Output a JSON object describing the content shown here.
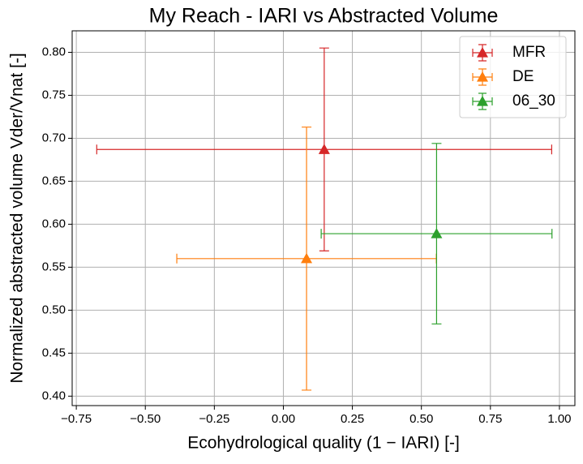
{
  "chart_data": {
    "type": "errorbar-scatter",
    "title": "My Reach - IARI vs Abstracted Volume",
    "x_label": "Ecohydrological quality (1 − IARI) [-]",
    "y_label": "Normalized abstracted volume Vder/Vnat [-]",
    "xlim": [
      -0.765,
      1.056
    ],
    "ylim": [
      0.389,
      0.825
    ],
    "xticks": [
      {
        "value": -0.75,
        "label": "−0.75"
      },
      {
        "value": -0.5,
        "label": "−0.50"
      },
      {
        "value": -0.25,
        "label": "−0.25"
      },
      {
        "value": 0,
        "label": "0.00"
      },
      {
        "value": 0.25,
        "label": "0.25"
      },
      {
        "value": 0.5,
        "label": "0.50"
      },
      {
        "value": 0.75,
        "label": "0.75"
      },
      {
        "value": 1,
        "label": "1.00"
      }
    ],
    "yticks": [
      {
        "value": 0.4,
        "label": "0.40"
      },
      {
        "value": 0.45,
        "label": "0.45"
      },
      {
        "value": 0.5,
        "label": "0.50"
      },
      {
        "value": 0.55,
        "label": "0.55"
      },
      {
        "value": 0.6,
        "label": "0.60"
      },
      {
        "value": 0.65,
        "label": "0.65"
      },
      {
        "value": 0.7,
        "label": "0.70"
      },
      {
        "value": 0.75,
        "label": "0.75"
      },
      {
        "value": 0.8,
        "label": "0.80"
      }
    ],
    "grid": true,
    "legend": "upper right",
    "series": [
      {
        "name": "MFR",
        "color": "#d62728",
        "x": [
          0.148
        ],
        "values": [
          0.687
        ],
        "xerr": [
          0.824
        ],
        "yerr": [
          0.118
        ]
      },
      {
        "name": "DE",
        "color": "#ff7f0e",
        "x": [
          0.084
        ],
        "values": [
          0.56
        ],
        "xerr": [
          0.47
        ],
        "yerr": [
          0.153
        ]
      },
      {
        "name": "06_30",
        "color": "#2ca02c",
        "x": [
          0.555
        ],
        "values": [
          0.589
        ],
        "xerr": [
          0.418
        ],
        "yerr": [
          0.105
        ]
      }
    ]
  }
}
